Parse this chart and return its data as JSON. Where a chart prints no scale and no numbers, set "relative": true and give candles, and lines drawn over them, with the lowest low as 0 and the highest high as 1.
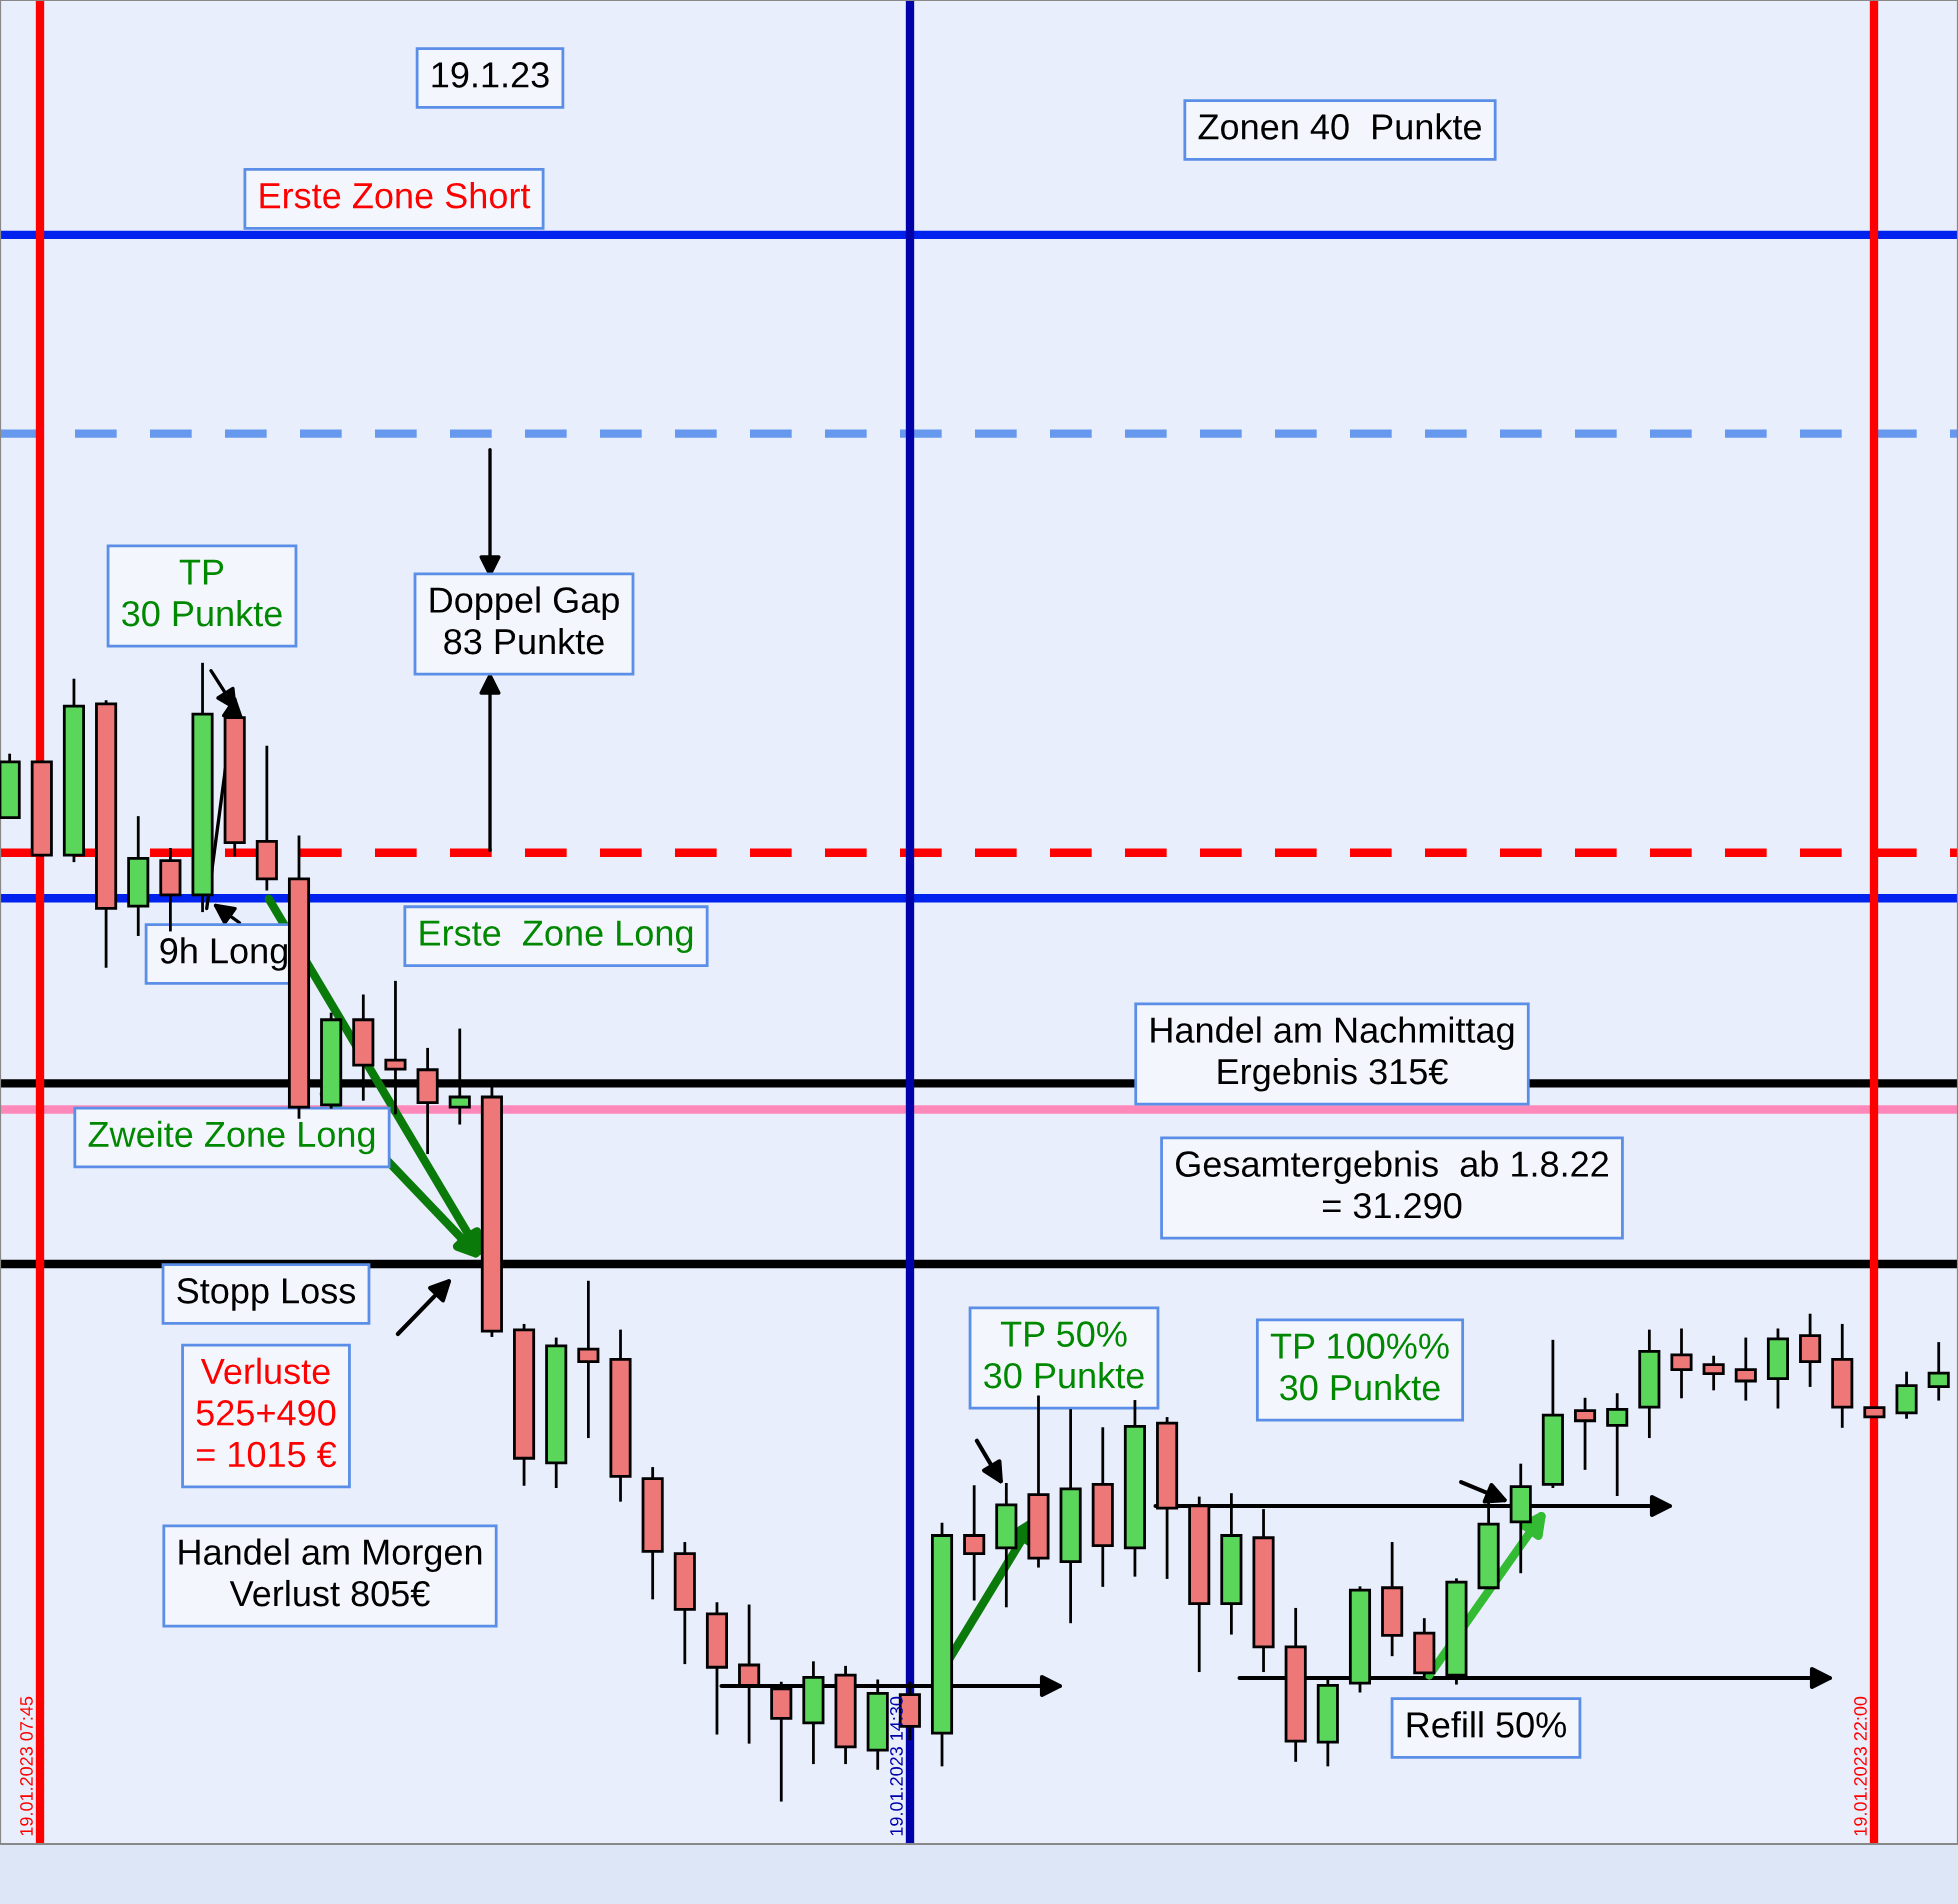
{
  "chart_data": {
    "type": "candlestick",
    "relative": true,
    "grid": false,
    "legend": false,
    "categories": [
      null,
      null,
      null,
      null,
      null,
      null,
      null,
      null,
      null,
      null,
      null,
      null,
      null,
      null,
      null,
      null,
      null,
      null,
      null,
      null,
      null,
      null,
      null,
      null,
      null,
      null,
      null,
      null,
      null,
      null,
      null,
      null,
      null,
      null,
      null,
      null,
      null,
      null,
      null,
      null,
      null,
      null,
      null,
      null,
      null,
      null,
      null,
      null,
      null,
      null,
      null,
      null,
      null,
      null,
      null,
      null,
      null,
      null,
      null,
      null,
      null
    ],
    "ohlc": [
      [
        0.865,
        0.92,
        0.865,
        0.914
      ],
      [
        0.914,
        0.914,
        0.832,
        0.832
      ],
      [
        0.832,
        0.986,
        0.827,
        0.963
      ],
      [
        0.965,
        0.967,
        0.734,
        0.785
      ],
      [
        0.787,
        0.865,
        0.762,
        0.829
      ],
      [
        0.827,
        0.837,
        0.766,
        0.797
      ],
      [
        0.797,
        1.0,
        0.783,
        0.956
      ],
      [
        0.953,
        0.963,
        0.832,
        0.843
      ],
      [
        0.844,
        0.927,
        0.802,
        0.811
      ],
      [
        0.811,
        0.848,
        0.601,
        0.61
      ],
      [
        0.612,
        0.692,
        0.61,
        0.687
      ],
      [
        0.687,
        0.708,
        0.617,
        0.647
      ],
      [
        0.65,
        0.72,
        0.605,
        0.645
      ],
      [
        0.643,
        0.661,
        0.57,
        0.614
      ],
      [
        0.61,
        0.678,
        0.596,
        0.619
      ],
      [
        0.619,
        0.629,
        0.409,
        0.413
      ],
      [
        0.414,
        0.418,
        0.278,
        0.301
      ],
      [
        0.297,
        0.406,
        0.276,
        0.4
      ],
      [
        0.397,
        0.456,
        0.32,
        0.386
      ],
      [
        0.388,
        0.413,
        0.264,
        0.285
      ],
      [
        0.283,
        0.292,
        0.178,
        0.219
      ],
      [
        0.217,
        0.226,
        0.121,
        0.168
      ],
      [
        0.164,
        0.173,
        0.059,
        0.117
      ],
      [
        0.119,
        0.171,
        0.051,
        0.101
      ],
      [
        0.098,
        0.103,
        0.0,
        0.072
      ],
      [
        0.068,
        0.121,
        0.033,
        0.108
      ],
      [
        0.11,
        0.117,
        0.033,
        0.047
      ],
      [
        0.044,
        0.105,
        0.028,
        0.094
      ],
      [
        0.093,
        0.103,
        0.054,
        0.065
      ],
      [
        0.059,
        0.243,
        0.031,
        0.233
      ],
      [
        0.233,
        0.276,
        0.177,
        0.217
      ],
      [
        0.222,
        0.278,
        0.171,
        0.26
      ],
      [
        0.269,
        0.355,
        0.206,
        0.213
      ],
      [
        0.21,
        0.343,
        0.157,
        0.274
      ],
      [
        0.278,
        0.327,
        0.189,
        0.224
      ],
      [
        0.222,
        0.351,
        0.198,
        0.329
      ],
      [
        0.332,
        0.336,
        0.196,
        0.257
      ],
      [
        0.259,
        0.266,
        0.114,
        0.173
      ],
      [
        0.173,
        0.269,
        0.147,
        0.233
      ],
      [
        0.231,
        0.255,
        0.114,
        0.135
      ],
      [
        0.135,
        0.168,
        0.035,
        0.052
      ],
      [
        0.051,
        0.108,
        0.031,
        0.101
      ],
      [
        0.103,
        0.187,
        0.096,
        0.185
      ],
      [
        0.187,
        0.226,
        0.128,
        0.145
      ],
      [
        0.147,
        0.159,
        0.11,
        0.112
      ],
      [
        0.11,
        0.194,
        0.103,
        0.192
      ],
      [
        0.187,
        0.269,
        0.187,
        0.243
      ],
      [
        0.245,
        0.295,
        0.201,
        0.276
      ],
      [
        0.278,
        0.404,
        0.276,
        0.339
      ],
      [
        0.343,
        0.353,
        0.292,
        0.334
      ],
      [
        0.33,
        0.357,
        0.269,
        0.344
      ],
      [
        0.346,
        0.413,
        0.32,
        0.395
      ],
      [
        0.392,
        0.414,
        0.355,
        0.379
      ],
      [
        0.381,
        0.39,
        0.362,
        0.378
      ],
      [
        0.379,
        0.406,
        0.353,
        0.369
      ],
      [
        0.371,
        0.414,
        0.346,
        0.406
      ],
      [
        0.409,
        0.427,
        0.365,
        0.386
      ],
      [
        0.388,
        0.418,
        0.329,
        0.346
      ],
      [
        0.344,
        0.344,
        0.339,
        0.339
      ],
      [
        0.341,
        0.376,
        0.337,
        0.365
      ],
      [
        0.364,
        0.402,
        0.353,
        0.376
      ]
    ],
    "colors": [
      "#5ad65a",
      "#ee7777",
      "#5ad65a",
      "#ee7777",
      "#5ad65a",
      "#ee7777",
      "#5ad65a",
      "#ee7777",
      "#ee7777",
      "#ee7777",
      "#5ad65a",
      "#ee7777",
      "#ee7777",
      "#ee7777",
      "#5ad65a",
      "#ee7777",
      "#ee7777",
      "#5ad65a",
      "#ee7777",
      "#ee7777",
      "#ee7777",
      "#ee7777",
      "#ee7777",
      "#ee7777",
      "#ee7777",
      "#5ad65a",
      "#ee7777",
      "#5ad65a",
      "#ee7777",
      "#5ad65a",
      "#ee7777",
      "#5ad65a",
      "#ee7777",
      "#5ad65a",
      "#ee7777",
      "#5ad65a",
      "#ee7777",
      "#ee7777",
      "#5ad65a",
      "#ee7777",
      "#ee7777",
      "#5ad65a",
      "#5ad65a",
      "#ee7777",
      "#ee7777",
      "#5ad65a",
      "#5ad65a",
      "#5ad65a",
      "#5ad65a",
      "#ee7777",
      "#5ad65a",
      "#5ad65a",
      "#ee7777",
      "#ee7777",
      "#ee7777",
      "#5ad65a",
      "#ee7777",
      "#ee7777",
      "#ee7777",
      "#5ad65a",
      "#5ad65a"
    ],
    "ref_lines": [
      {
        "axis": "y",
        "value": 1.378,
        "label": "Erste Zone Short",
        "color": "#0022ee",
        "line_style": "solid"
      },
      {
        "axis": "y",
        "value": 1.203,
        "color": "#6699ee",
        "line_style": "dashed"
      },
      {
        "axis": "y",
        "value": 0.834,
        "color": "#ff0000",
        "line_style": "dashed"
      },
      {
        "axis": "y",
        "value": 0.794,
        "label": "Erste  Zone Long",
        "color": "#0022ee",
        "line_style": "solid"
      },
      {
        "axis": "y",
        "value": 0.631,
        "color": "#000000",
        "line_style": "solid"
      },
      {
        "axis": "y",
        "value": 0.608,
        "label": "Zweite Zone Long",
        "color": "#ff88bb",
        "line_style": "solid"
      },
      {
        "axis": "y",
        "value": 0.472,
        "label": "Stopp Loss",
        "color": "#000000",
        "line_style": "solid"
      }
    ],
    "annotations": [
      "19.1.23",
      "Zonen 40  Punkte",
      "TP\n30 Punkte",
      "Doppel Gap\n83 Punkte",
      "9h Long",
      "Handel am Nachmittag\nErgebnis 315€",
      "Gesamtergebnis  ab 1.8.22\n= 31.290",
      "Verluste\n525+490\n= 1015 €",
      "Handel am Morgen\nVerlust 805€",
      "TP 50%\n30 Punkte",
      "TP 100%%\n30 Punkte",
      "Refill 50%",
      "19.01.2023 07:45",
      "19.01.2023 14:30",
      "19.01.2023 22:00"
    ]
  }
}
